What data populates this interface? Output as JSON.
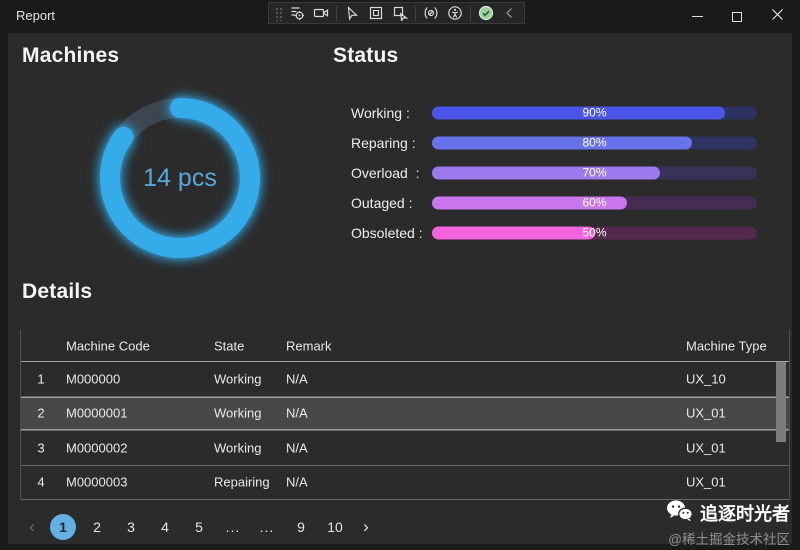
{
  "window": {
    "title": "Report",
    "control_icons": [
      "minimize-icon",
      "maximize-icon",
      "close-icon"
    ]
  },
  "debug_toolbar": {
    "icons": [
      "toolbar-grip",
      "go-to-live-visual-tree",
      "screencast",
      "enable-element-selection",
      "display-layout-adorners",
      "track-focused-element",
      "hot-reload",
      "scan-accessibility",
      "hot-reload-status-ok",
      "collapse-toolbar"
    ]
  },
  "machines": {
    "heading": "Machines",
    "donut": {
      "center_label": "14 pcs",
      "percent": 85,
      "arc_color": "#35ABEA",
      "track_color": "#3B4650",
      "label_color": "#58A8DE"
    }
  },
  "status": {
    "heading": "Status",
    "bars": [
      {
        "label": "Working :",
        "percent": 90,
        "percent_label": "90%",
        "fill_color": "#4A55E8",
        "track_color": "#2C3261"
      },
      {
        "label": "Reparing :",
        "percent": 80,
        "percent_label": "80%",
        "fill_color": "#6873EB",
        "track_color": "#2E3361"
      },
      {
        "label": "Overload  :",
        "percent": 70,
        "percent_label": "70%",
        "fill_color": "#9C79EC",
        "track_color": "#3A3158"
      },
      {
        "label": "Outaged :",
        "percent": 60,
        "percent_label": "60%",
        "fill_color": "#CA76EE",
        "track_color": "#442C52"
      },
      {
        "label": "Obsoleted :",
        "percent": 50,
        "percent_label": "50%",
        "fill_color": "#F263DC",
        "track_color": "#52284B"
      }
    ]
  },
  "details": {
    "heading": "Details",
    "columns": [
      "Machine Code",
      "State",
      "Remark",
      "Machine Type"
    ],
    "rows": [
      {
        "num": "1",
        "code": "M000000",
        "state": "Working",
        "remark": "N/A",
        "type": "UX_10",
        "selected": false
      },
      {
        "num": "2",
        "code": "M0000001",
        "state": "Working",
        "remark": "N/A",
        "type": "UX_01",
        "selected": true
      },
      {
        "num": "3",
        "code": "M0000002",
        "state": "Working",
        "remark": "N/A",
        "type": "UX_01",
        "selected": false
      },
      {
        "num": "4",
        "code": "M0000003",
        "state": "Repairing",
        "remark": "N/A",
        "type": "UX_01",
        "selected": false
      }
    ]
  },
  "pagination": {
    "prev": "‹",
    "next": "›",
    "pages": [
      "1",
      "2",
      "3",
      "4",
      "5",
      "...",
      "...",
      "9",
      "10"
    ],
    "active_page": "1",
    "active_color": "#63B0E3"
  },
  "watermark": {
    "name": "追逐时光者",
    "subtitle": "@稀土掘金技术社区"
  }
}
